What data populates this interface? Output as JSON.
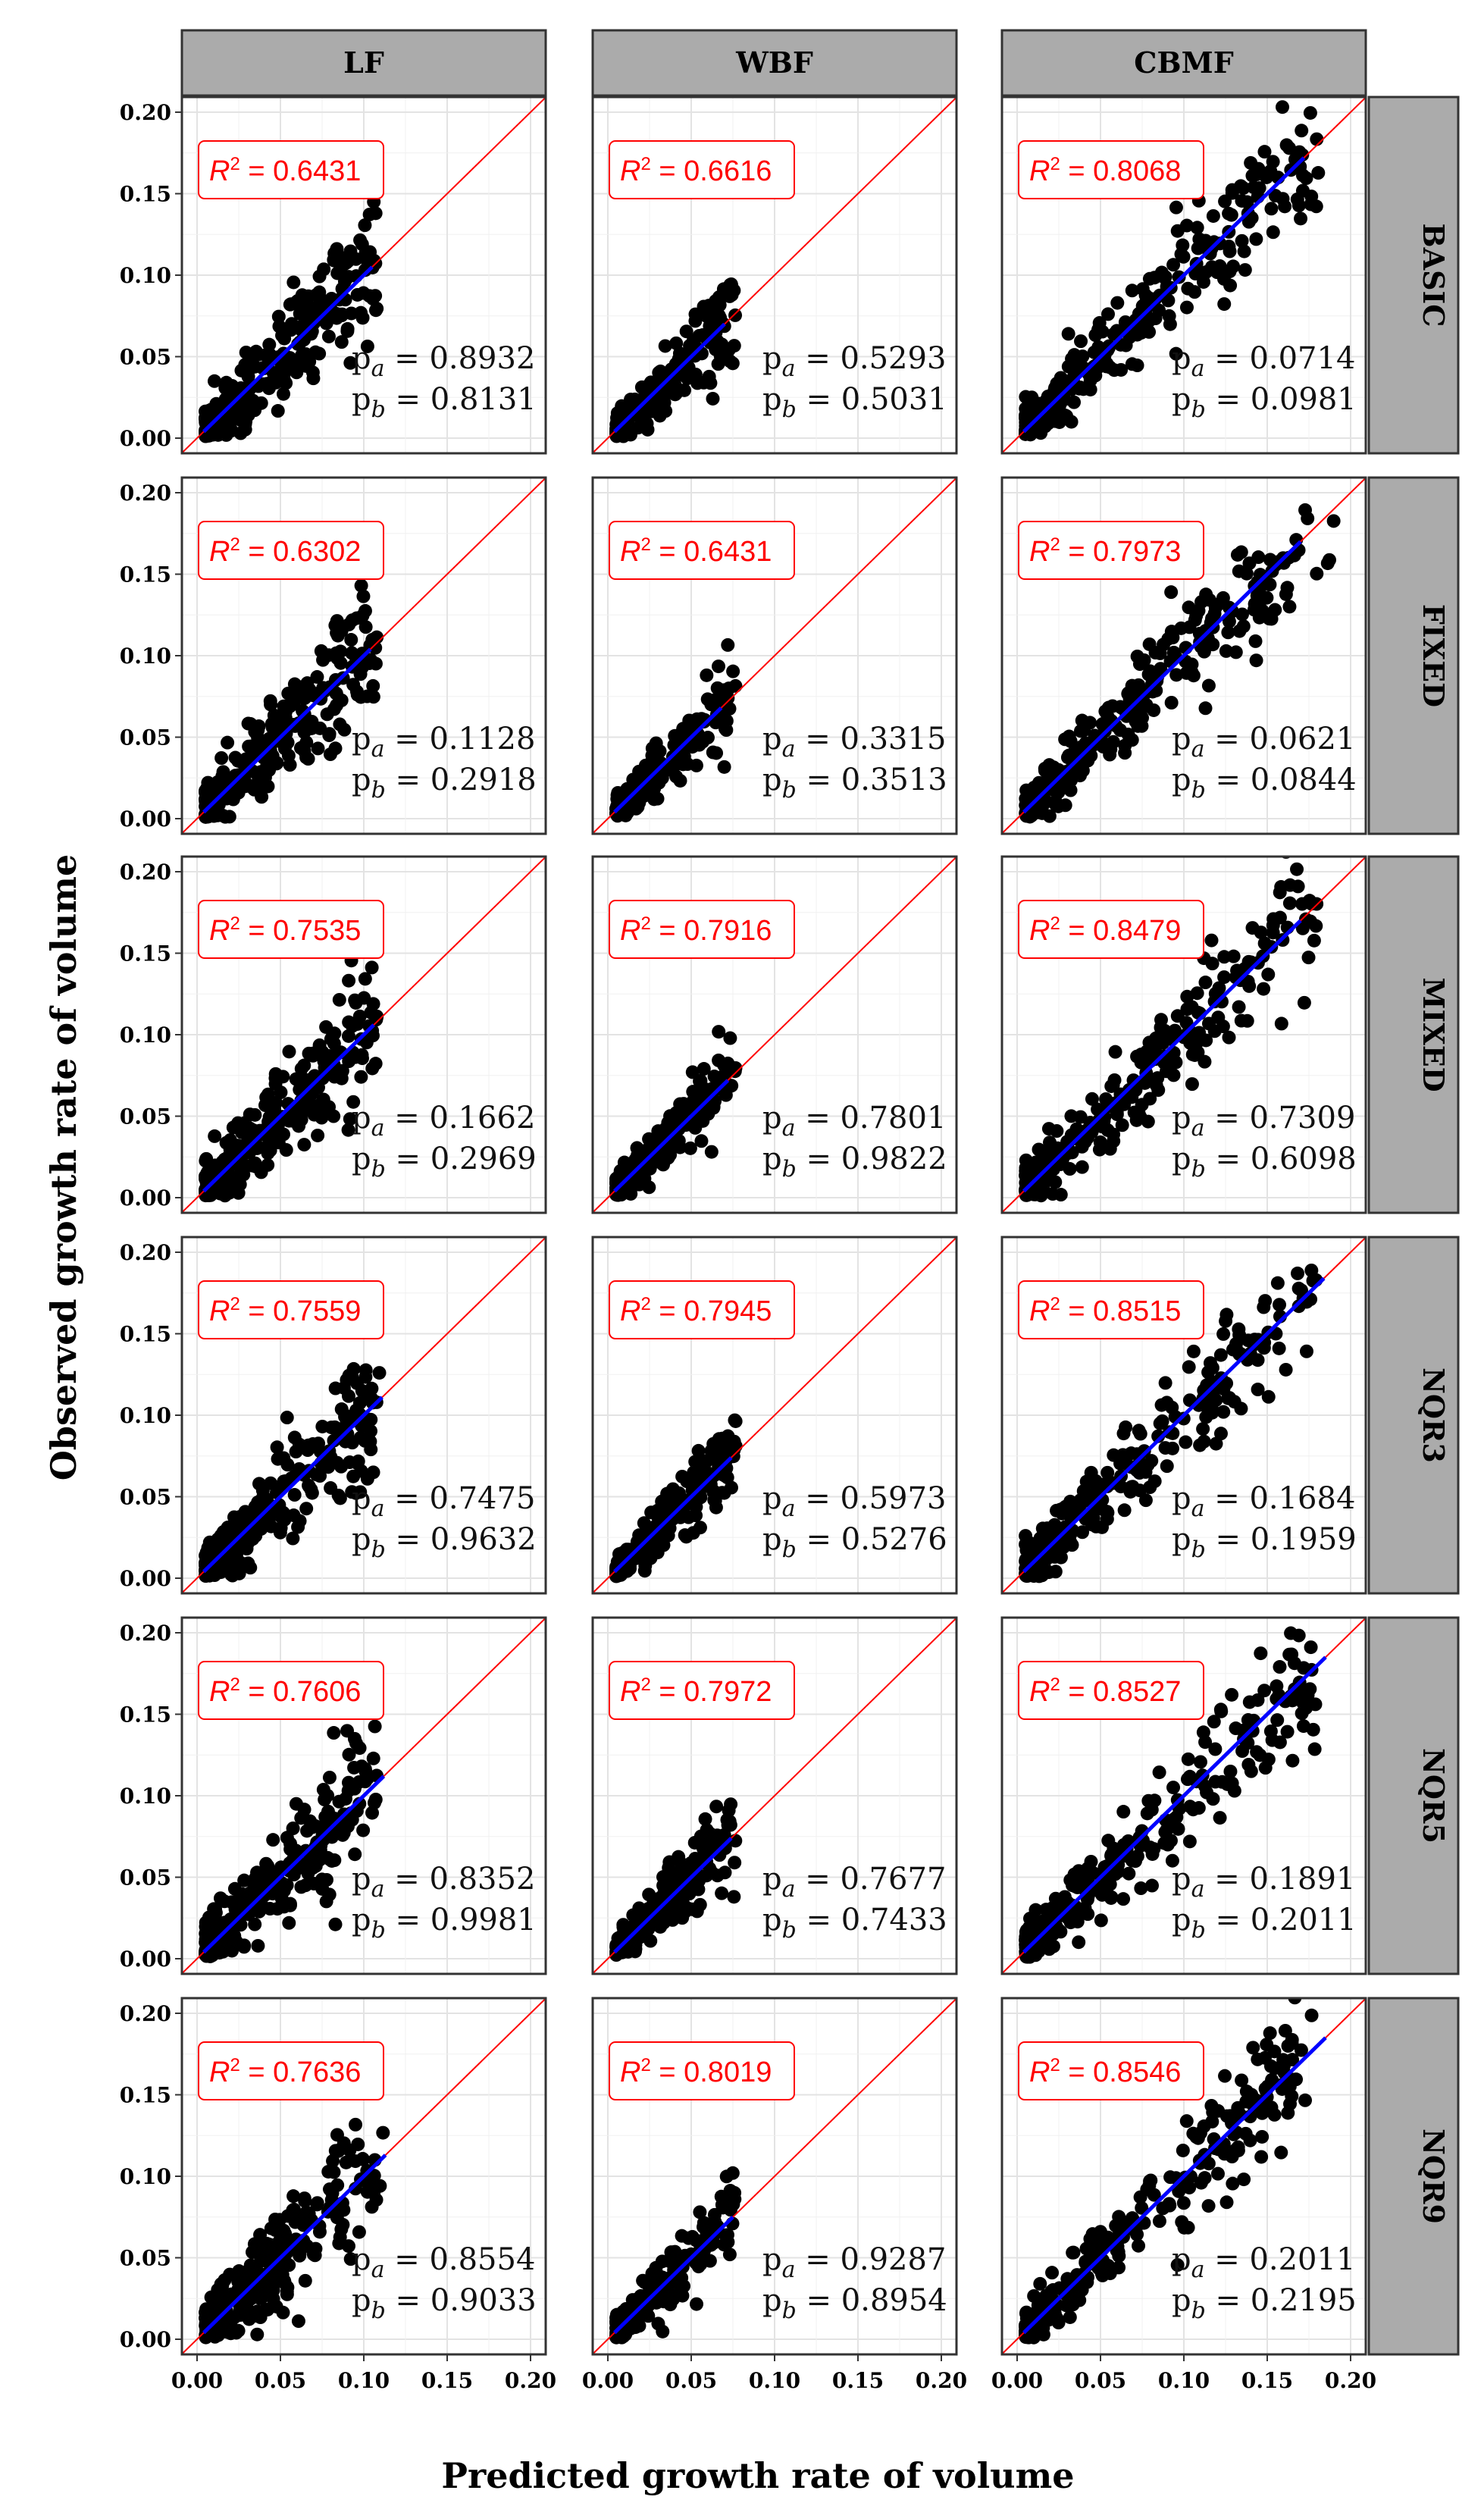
{
  "chart_data": {
    "type": "scatter",
    "title": "",
    "xlabel": "Predicted growth rate of volume",
    "ylabel": "Observed growth rate of volume",
    "xlim": [
      0.0,
      0.2
    ],
    "ylim": [
      0.0,
      0.2
    ],
    "x_ticks": [
      "0.00",
      "0.05",
      "0.10",
      "0.15",
      "0.20"
    ],
    "y_ticks": [
      "0.00",
      "0.05",
      "0.10",
      "0.15",
      "0.20"
    ],
    "columns": [
      "LF",
      "WBF",
      "CBMF"
    ],
    "rows": [
      "BASIC",
      "FIXED",
      "MIXED",
      "NQR3",
      "NQR5",
      "NQR9"
    ],
    "reference_line": {
      "slope": 1,
      "intercept": 0,
      "color": "#ff0000"
    },
    "fit_line_color": "#0000ff",
    "point_color": "#000000",
    "panels": [
      {
        "row": "BASIC",
        "col": "LF",
        "r2": "0.6431",
        "pa": "0.8932",
        "pb": "0.8131",
        "x_max": 0.112,
        "fit_end": 0.105
      },
      {
        "row": "BASIC",
        "col": "WBF",
        "r2": "0.6616",
        "pa": "0.5293",
        "pb": "0.5031",
        "x_max": 0.078,
        "fit_end": 0.07
      },
      {
        "row": "BASIC",
        "col": "CBMF",
        "r2": "0.8068",
        "pa": "0.0714",
        "pb": "0.0981",
        "x_max": 0.19,
        "fit_end": 0.172
      },
      {
        "row": "FIXED",
        "col": "LF",
        "r2": "0.6302",
        "pa": "0.1128",
        "pb": "0.2918",
        "x_max": 0.112,
        "fit_end": 0.104
      },
      {
        "row": "FIXED",
        "col": "WBF",
        "r2": "0.6431",
        "pa": "0.3315",
        "pb": "0.3513",
        "x_max": 0.078,
        "fit_end": 0.068
      },
      {
        "row": "FIXED",
        "col": "CBMF",
        "r2": "0.7973",
        "pa": "0.0621",
        "pb": "0.0844",
        "x_max": 0.19,
        "fit_end": 0.17
      },
      {
        "row": "MIXED",
        "col": "LF",
        "r2": "0.7535",
        "pa": "0.1662",
        "pb": "0.2969",
        "x_max": 0.112,
        "fit_end": 0.106
      },
      {
        "row": "MIXED",
        "col": "WBF",
        "r2": "0.7916",
        "pa": "0.7801",
        "pb": "0.9822",
        "x_max": 0.078,
        "fit_end": 0.072
      },
      {
        "row": "MIXED",
        "col": "CBMF",
        "r2": "0.8479",
        "pa": "0.7309",
        "pb": "0.6098",
        "x_max": 0.19,
        "fit_end": 0.17
      },
      {
        "row": "NQR3",
        "col": "LF",
        "r2": "0.7559",
        "pa": "0.7475",
        "pb": "0.9632",
        "x_max": 0.112,
        "fit_end": 0.111
      },
      {
        "row": "NQR3",
        "col": "WBF",
        "r2": "0.7945",
        "pa": "0.5973",
        "pb": "0.5276",
        "x_max": 0.078,
        "fit_end": 0.074
      },
      {
        "row": "NQR3",
        "col": "CBMF",
        "r2": "0.8515",
        "pa": "0.1684",
        "pb": "0.1959",
        "x_max": 0.19,
        "fit_end": 0.184
      },
      {
        "row": "NQR5",
        "col": "LF",
        "r2": "0.7606",
        "pa": "0.8352",
        "pb": "0.9981",
        "x_max": 0.112,
        "fit_end": 0.112
      },
      {
        "row": "NQR5",
        "col": "WBF",
        "r2": "0.7972",
        "pa": "0.7677",
        "pb": "0.7433",
        "x_max": 0.078,
        "fit_end": 0.074
      },
      {
        "row": "NQR5",
        "col": "CBMF",
        "r2": "0.8527",
        "pa": "0.1891",
        "pb": "0.2011",
        "x_max": 0.19,
        "fit_end": 0.185
      },
      {
        "row": "NQR9",
        "col": "LF",
        "r2": "0.7636",
        "pa": "0.8554",
        "pb": "0.9033",
        "x_max": 0.112,
        "fit_end": 0.113
      },
      {
        "row": "NQR9",
        "col": "WBF",
        "r2": "0.8019",
        "pa": "0.9287",
        "pb": "0.8954",
        "x_max": 0.078,
        "fit_end": 0.075
      },
      {
        "row": "NQR9",
        "col": "CBMF",
        "r2": "0.8546",
        "pa": "0.2011",
        "pb": "0.2195",
        "x_max": 0.19,
        "fit_end": 0.185
      }
    ]
  }
}
